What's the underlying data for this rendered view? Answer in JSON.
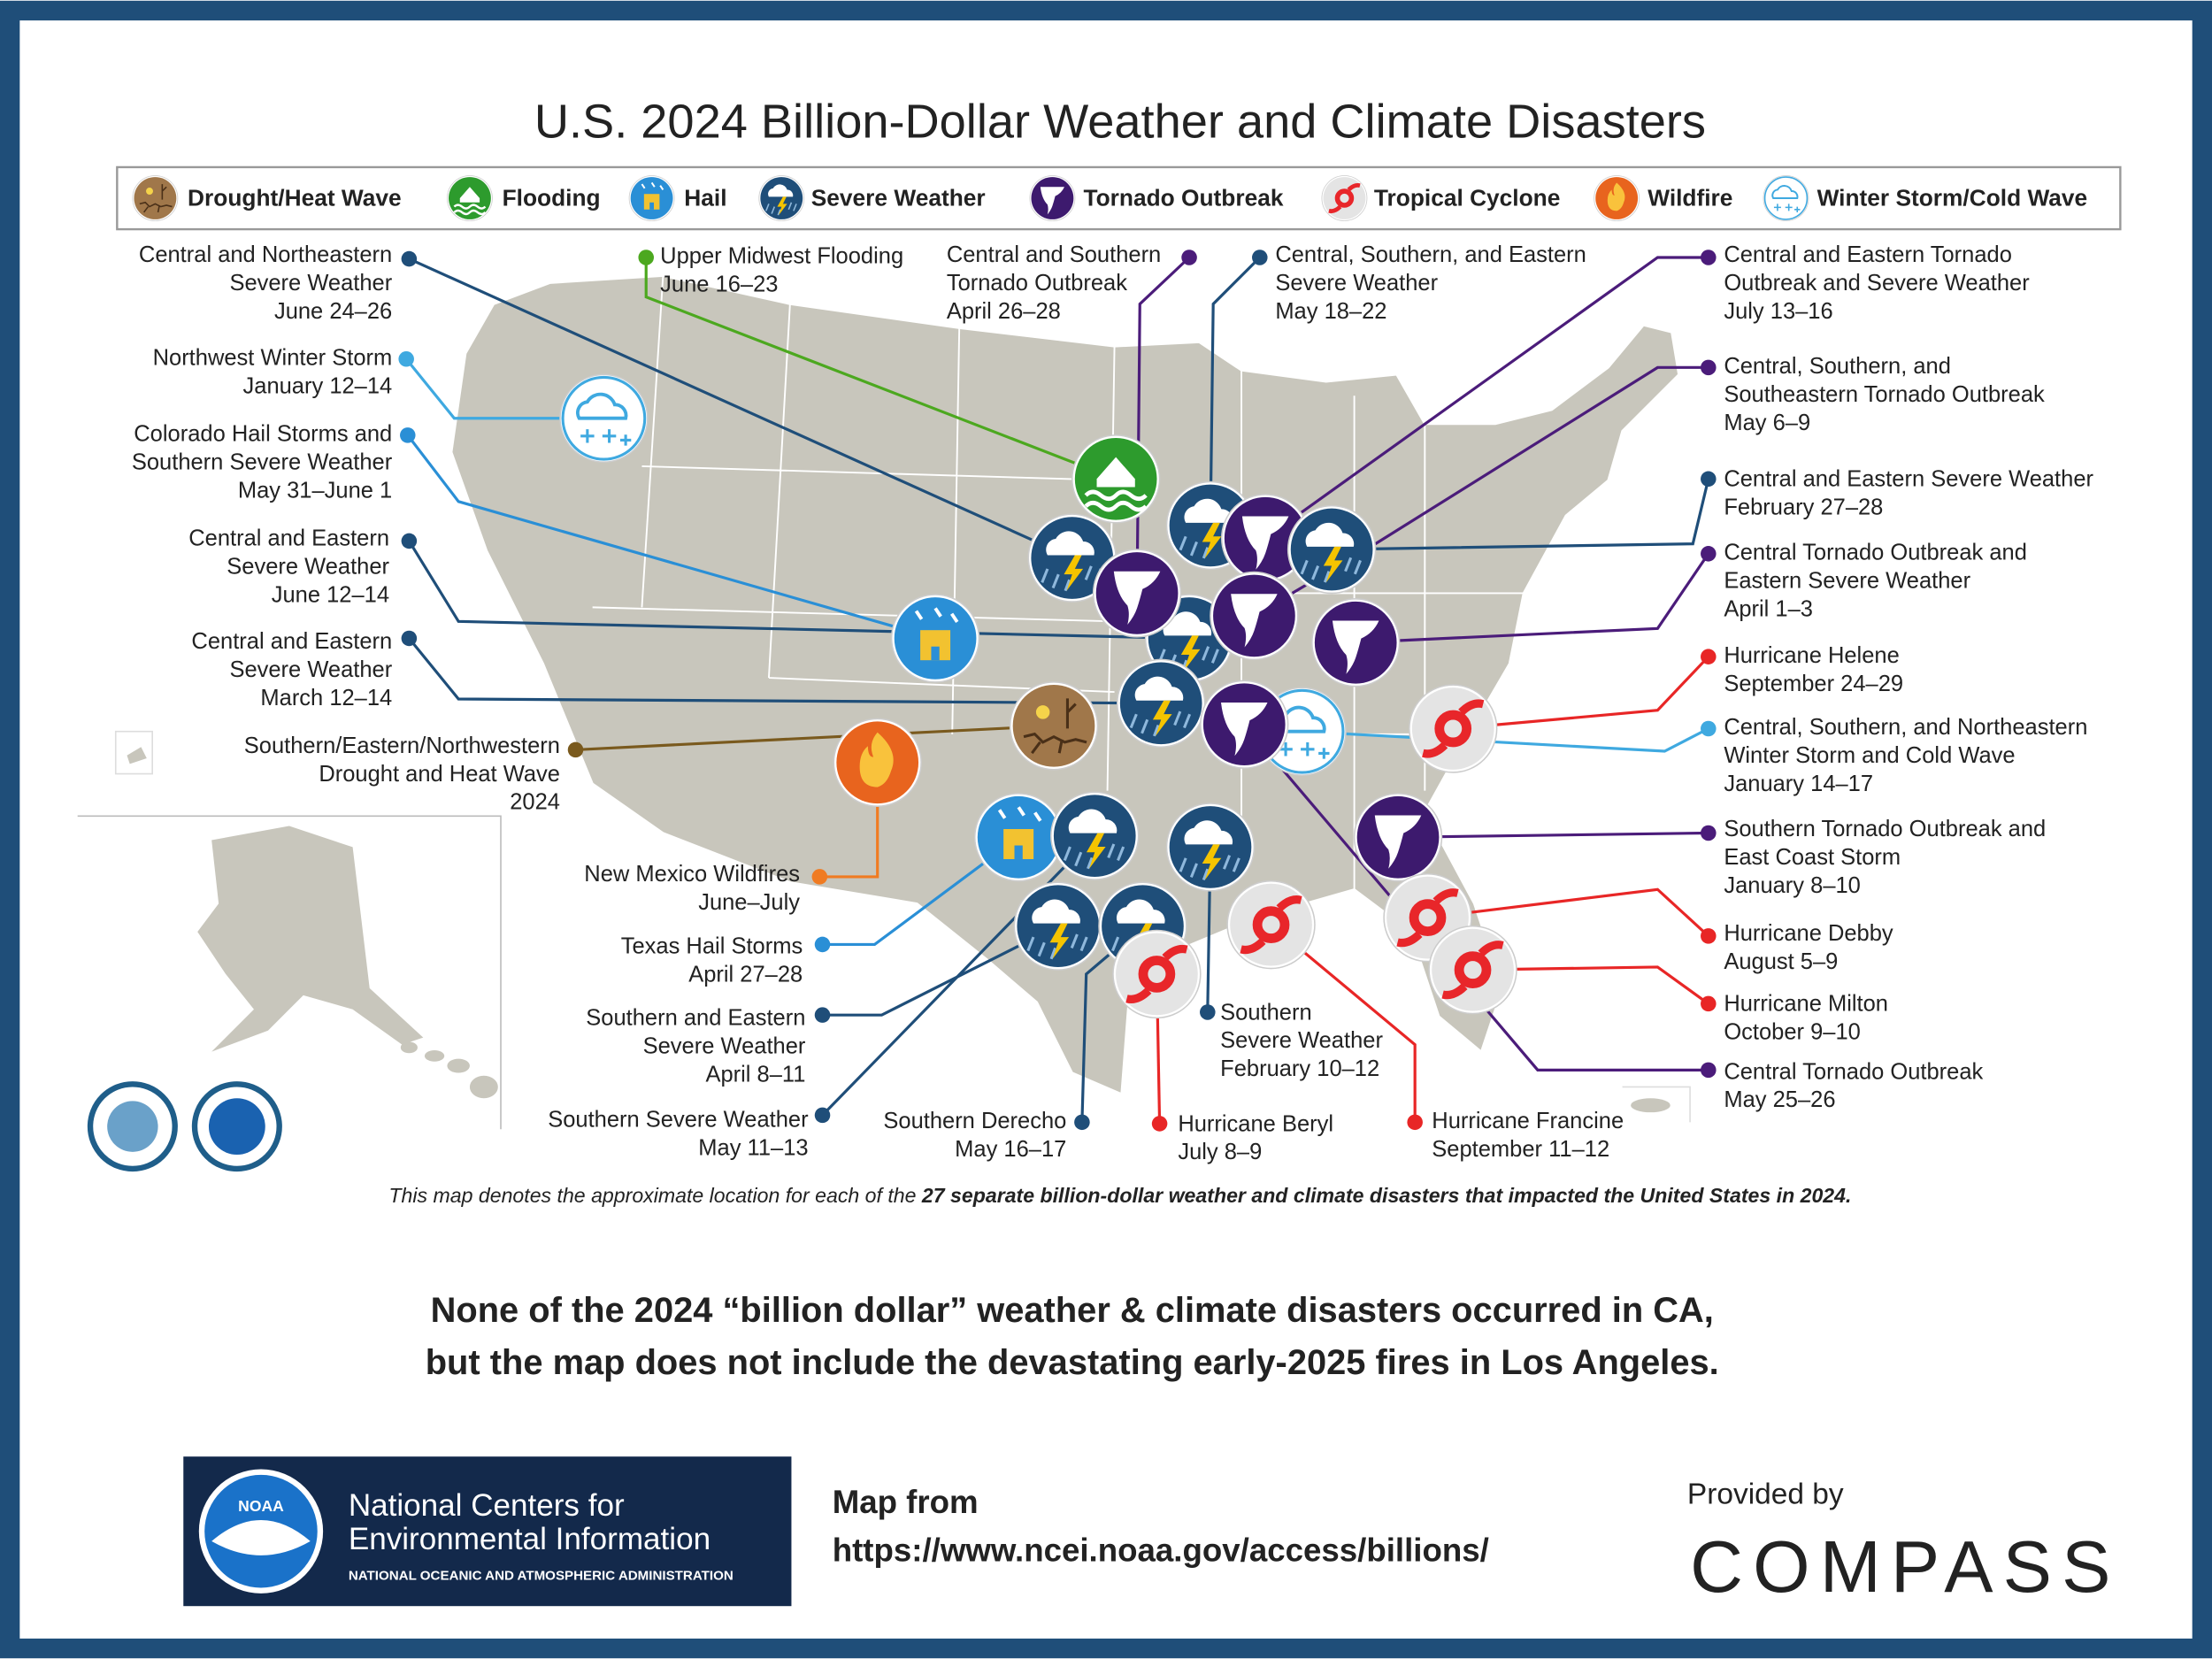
{
  "title": "U.S. 2024 Billion-Dollar Weather and Climate Disasters",
  "legend": [
    "Drought/Heat Wave",
    "Flooding",
    "Hail",
    "Severe Weather",
    "Tornado Outbreak",
    "Tropical Cyclone",
    "Wildfire",
    "Winter Storm/Cold Wave"
  ],
  "events": [
    {
      "label": [
        "Central and Northeastern",
        "Severe Weather"
      ],
      "dates": "June 24–26"
    },
    {
      "label": [
        "Northwest Winter Storm"
      ],
      "dates": "January 12–14"
    },
    {
      "label": [
        "Colorado Hail Storms and",
        "Southern Severe Weather"
      ],
      "dates": "May 31–June 1"
    },
    {
      "label": [
        "Central and Eastern",
        "Severe Weather"
      ],
      "dates": "June 12–14"
    },
    {
      "label": [
        "Central and Eastern",
        "Severe Weather"
      ],
      "dates": "March 12–14"
    },
    {
      "label": [
        "Southern/Eastern/Northwestern",
        "Drought and Heat Wave"
      ],
      "dates": "2024"
    },
    {
      "label": [
        "New Mexico Wildfires"
      ],
      "dates": "June–July"
    },
    {
      "label": [
        "Texas Hail Storms"
      ],
      "dates": "April 27–28"
    },
    {
      "label": [
        "Southern and Eastern",
        "Severe Weather"
      ],
      "dates": "April 8–11"
    },
    {
      "label": [
        "Southern Severe Weather"
      ],
      "dates": "May 11–13"
    },
    {
      "label": [
        "Southern Derecho"
      ],
      "dates": "May 16–17"
    },
    {
      "label": [
        "Hurricane Beryl"
      ],
      "dates": "July 8–9"
    },
    {
      "label": [
        "Southern",
        "Severe Weather"
      ],
      "dates": "February 10–12"
    },
    {
      "label": [
        "Hurricane Francine"
      ],
      "dates": "September 11–12"
    },
    {
      "label": [
        "Upper Midwest Flooding"
      ],
      "dates": "June 16–23"
    },
    {
      "label": [
        "Central and Southern",
        "Tornado Outbreak"
      ],
      "dates": "April 26–28"
    },
    {
      "label": [
        "Central, Southern, and Eastern",
        "Severe Weather"
      ],
      "dates": "May 18–22"
    },
    {
      "label": [
        "Central and Eastern Tornado",
        "Outbreak and Severe Weather"
      ],
      "dates": "July 13–16"
    },
    {
      "label": [
        "Central, Southern, and",
        "Southeastern Tornado Outbreak"
      ],
      "dates": "May 6–9"
    },
    {
      "label": [
        "Central and Eastern Severe Weather"
      ],
      "dates": "February 27–28"
    },
    {
      "label": [
        "Central Tornado Outbreak and",
        "Eastern Severe Weather"
      ],
      "dates": "April 1–3"
    },
    {
      "label": [
        "Hurricane Helene"
      ],
      "dates": "September 24–29"
    },
    {
      "label": [
        "Central, Southern, and Northeastern",
        "Winter Storm and Cold Wave"
      ],
      "dates": "January 14–17"
    },
    {
      "label": [
        "Southern Tornado Outbreak and",
        "East Coast Storm"
      ],
      "dates": "January 8–10"
    },
    {
      "label": [
        "Hurricane Debby"
      ],
      "dates": "August 5–9"
    },
    {
      "label": [
        "Hurricane Milton"
      ],
      "dates": "October 9–10"
    },
    {
      "label": [
        "Central Tornado Outbreak"
      ],
      "dates": "May 25–26"
    }
  ],
  "footnote": {
    "text": "This map denotes the approximate location for each of the ",
    "bold": "27 separate billion-dollar weather and climate disasters that impacted the United States in 2024."
  },
  "caption": [
    "None of the 2024 “billion dollar” weather & climate disasters occurred in CA,",
    "but the map does not include the devastating early-2025 fires in Los Angeles."
  ],
  "footer": {
    "logo_mark": "NOAA",
    "org": [
      "National Centers for",
      "Environmental Information"
    ],
    "org_sub": "NATIONAL OCEANIC AND ATMOSPHERIC ADMINISTRATION",
    "source": [
      "Map from",
      "https://www.ncei.noaa.gov/access/billions/"
    ],
    "provided_by": "Provided by",
    "brand": "COMPASS"
  }
}
